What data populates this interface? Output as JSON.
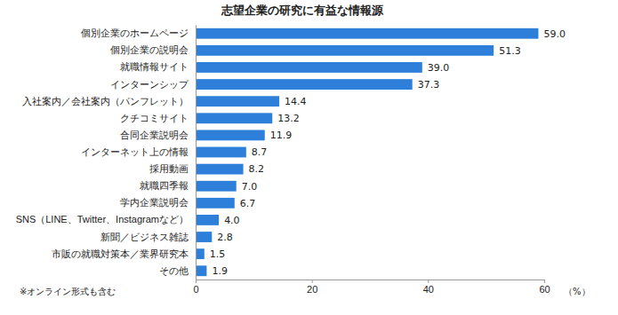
{
  "chart_data": {
    "type": "bar",
    "orientation": "horizontal",
    "title": "志望企業の研究に有益な情報源",
    "x_label": "（%）",
    "annotations": [
      "※オンライン形式も含む"
    ],
    "categories": [
      "個別企業のホームページ",
      "個別企業の説明会",
      "就職情報サイト",
      "インターンシップ",
      "入社案内／会社案内（パンフレット）",
      "クチコミサイト",
      "合同企業説明会",
      "インターネット上の情報",
      "採用動画",
      "就職四季報",
      "学内企業説明会",
      "SNS（LINE、Twitter、Instagramなど）",
      "新聞／ビジネス雑誌",
      "市販の就職対策本／業界研究本",
      "その他"
    ],
    "values": [
      59.0,
      51.3,
      39.0,
      37.3,
      14.4,
      13.2,
      11.9,
      8.7,
      8.2,
      7.0,
      6.7,
      4.0,
      2.8,
      1.5,
      1.9
    ],
    "value_labels": [
      "59.0",
      "51.3",
      "39.0",
      "37.3",
      "14.4",
      "13.2",
      "11.9",
      "8.7",
      "8.2",
      "7.0",
      "6.7",
      "4.0",
      "2.8",
      "1.5",
      "1.9"
    ],
    "color": "#2e7fd9",
    "xlim": [
      0,
      60
    ],
    "xticks": [
      0,
      20,
      40,
      60
    ],
    "grid": false,
    "data_labels": true
  }
}
